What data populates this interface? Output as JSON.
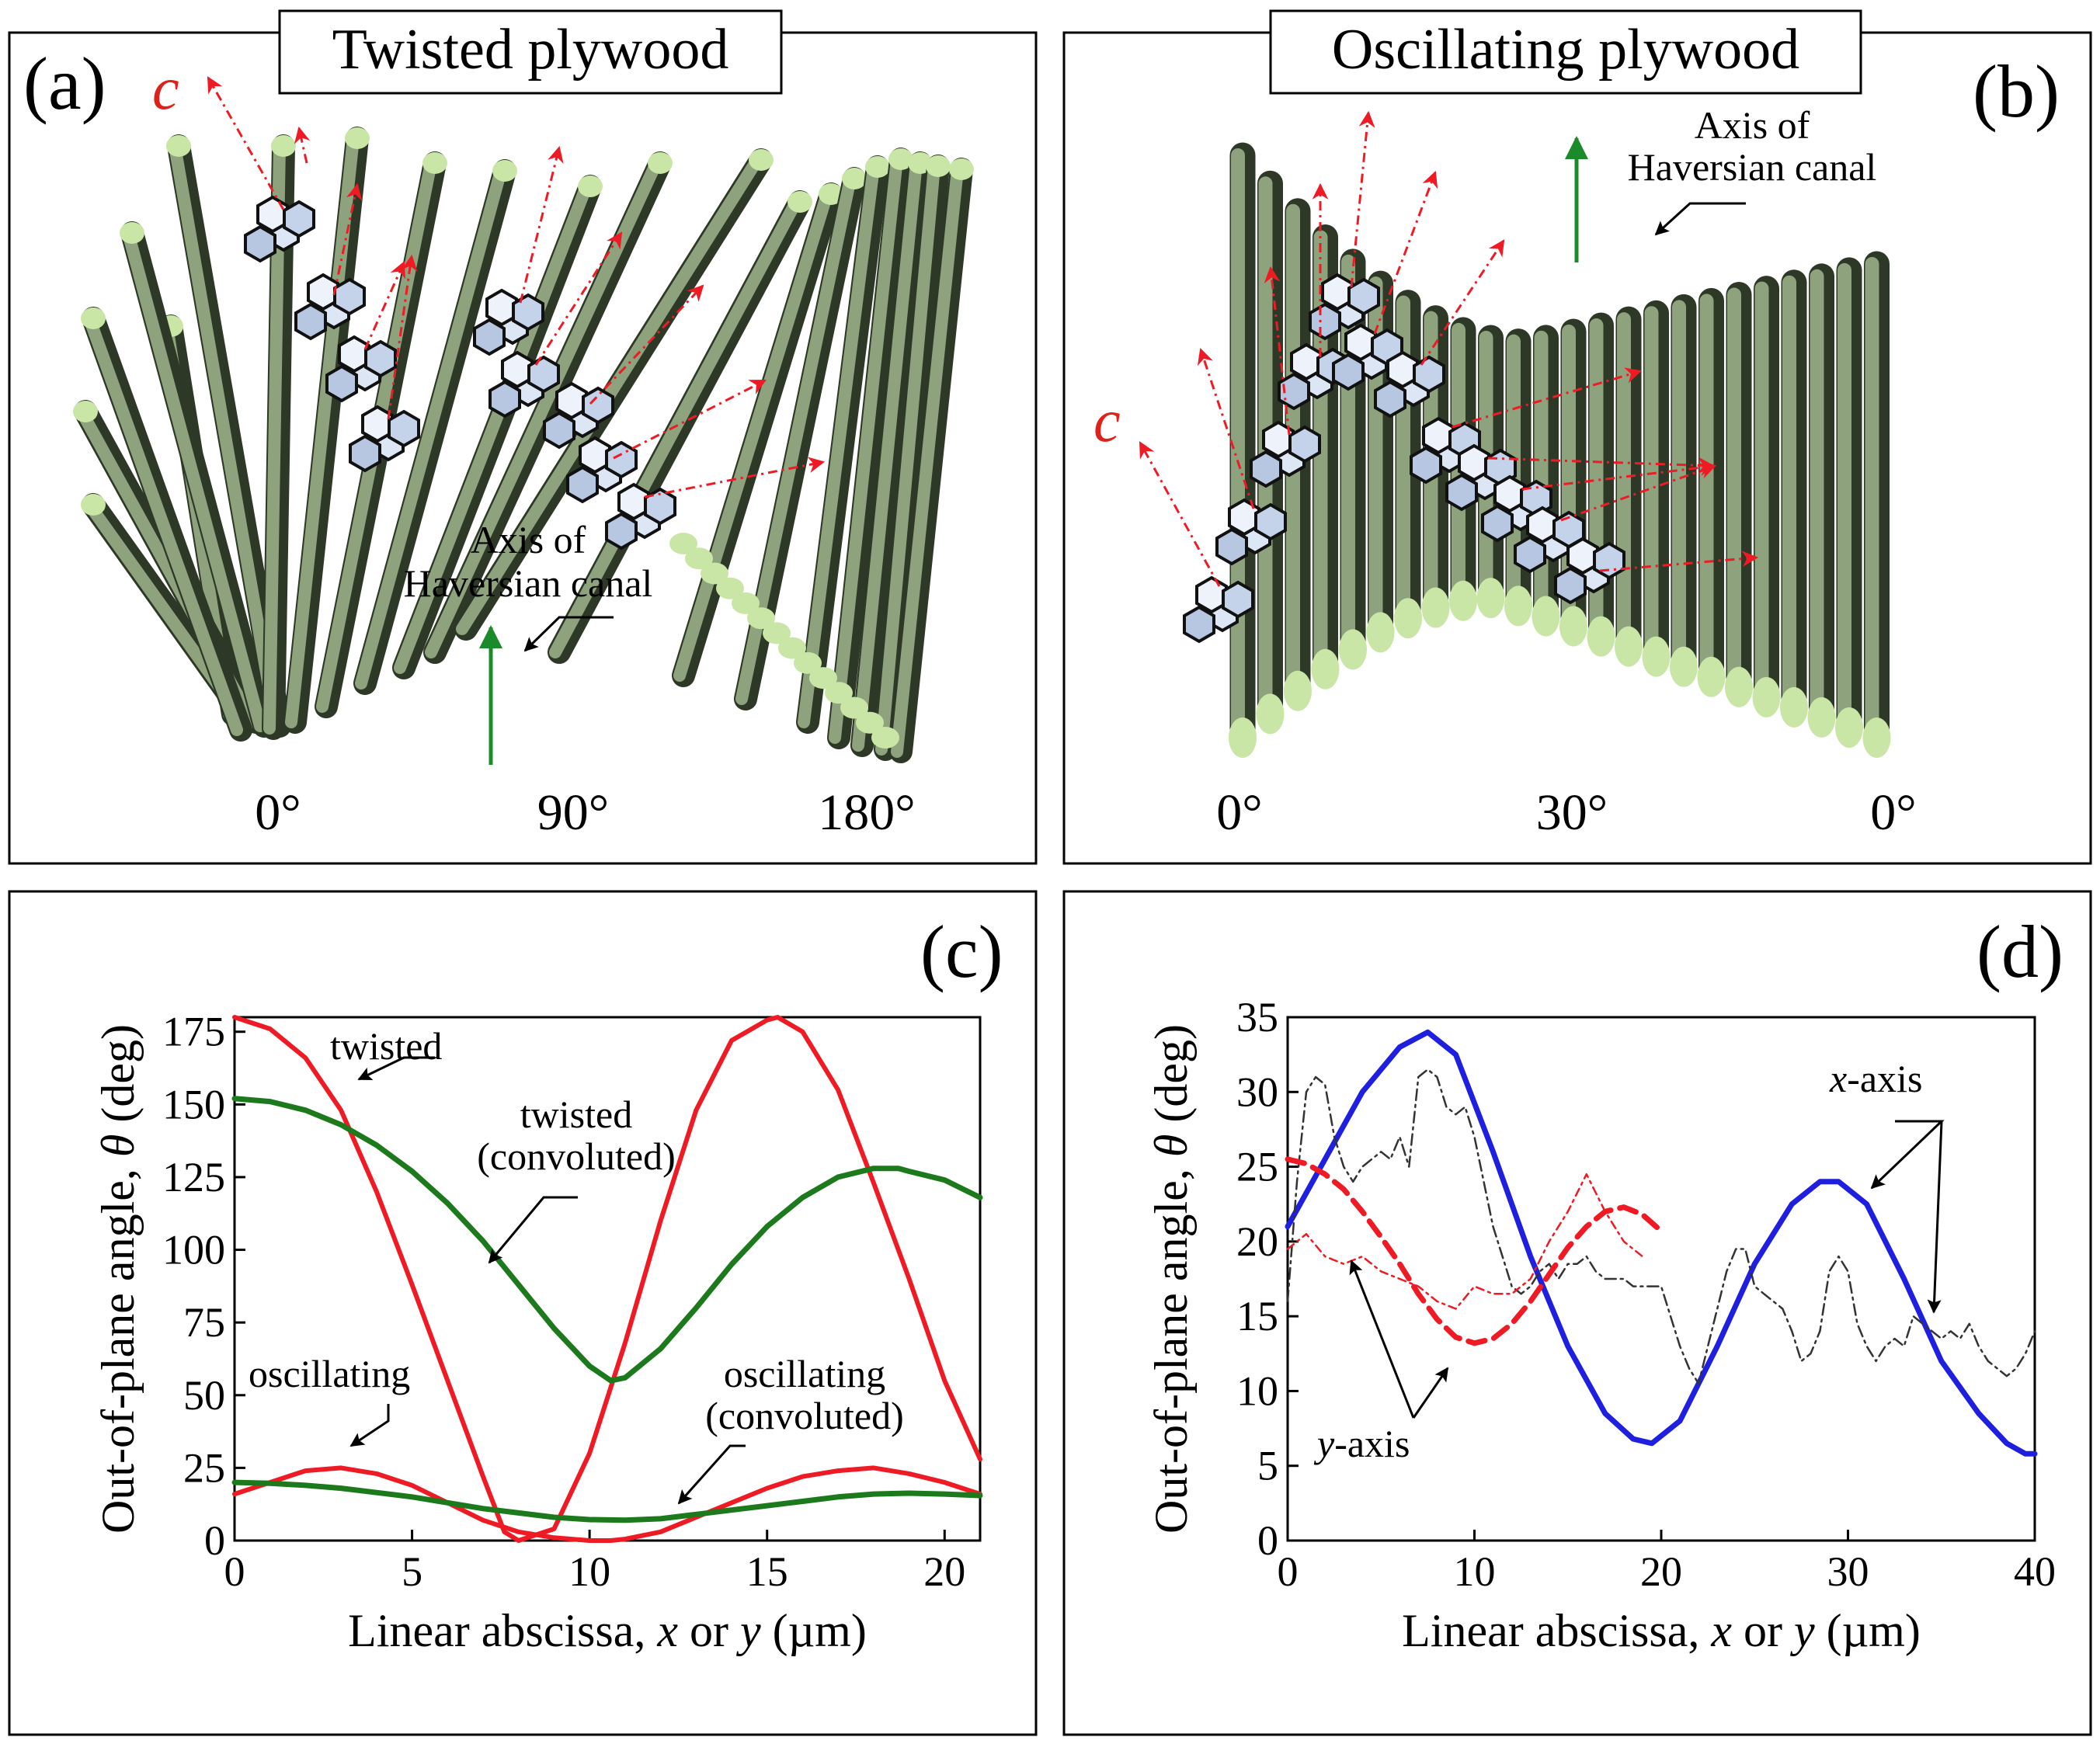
{
  "panel_a": {
    "label": "(a)",
    "title": "Twisted plywood",
    "c_label": "c",
    "axis_note_line1": "Axis of",
    "axis_note_line2": "Haversian canal",
    "angle_labels": [
      "0°",
      "90°",
      "180°"
    ]
  },
  "panel_b": {
    "label": "(b)",
    "title": "Oscillating plywood",
    "c_label": "c",
    "axis_note_line1": "Axis of",
    "axis_note_line2": "Haversian canal",
    "angle_labels": [
      "0°",
      "30°",
      "0°"
    ]
  },
  "colors": {
    "fiber": "#7f9470",
    "fiber_tip": "#c9e6a6",
    "arrow_red": "#ee1b24",
    "axis_green": "#1a8a2a",
    "blue": "#1f1fe0",
    "green_line": "#1c7a1c"
  },
  "chart_data": [
    {
      "panel": "(c)",
      "type": "line",
      "xlabel": "Linear abscissa, x or y (µm)",
      "ylabel": "Out-of-plane angle, θ (deg)",
      "xlim": [
        0,
        21
      ],
      "ylim": [
        0,
        180
      ],
      "xticks": [
        0,
        5,
        10,
        15,
        20
      ],
      "yticks": [
        0,
        25,
        50,
        75,
        100,
        125,
        150,
        175
      ],
      "series": [
        {
          "name": "twisted",
          "color": "#ee1b24",
          "x": [
            0,
            1,
            2,
            3,
            4,
            5,
            6,
            7,
            7.6,
            8,
            9,
            10,
            11,
            12,
            13,
            14,
            15,
            15.3,
            16,
            17,
            18,
            19,
            20,
            21
          ],
          "y": [
            180,
            176,
            166,
            148,
            120,
            88,
            55,
            22,
            3,
            0,
            4,
            30,
            68,
            110,
            148,
            172,
            179,
            180,
            175,
            155,
            123,
            90,
            55,
            28
          ]
        },
        {
          "name": "twisted (convoluted)",
          "color": "#1c7a1c",
          "x": [
            0,
            1,
            2,
            3,
            4,
            5,
            6,
            7,
            8,
            9,
            10,
            10.6,
            11,
            12,
            13,
            14,
            15,
            16,
            17,
            18,
            18.7,
            19,
            20,
            21
          ],
          "y": [
            152,
            151,
            148,
            143,
            136,
            127,
            116,
            103,
            88,
            73,
            60,
            55,
            56,
            66,
            80,
            95,
            108,
            118,
            125,
            128,
            128,
            127,
            124,
            118
          ]
        },
        {
          "name": "oscillating",
          "color": "#ee1b24",
          "x": [
            0,
            1,
            2,
            3,
            4,
            5,
            6,
            7,
            8,
            9,
            10,
            10.6,
            11,
            12,
            13,
            14,
            15,
            16,
            17,
            18,
            19,
            20,
            21
          ],
          "y": [
            16,
            20,
            24,
            25,
            23,
            19,
            13,
            7,
            3,
            1,
            0,
            0,
            0.5,
            3,
            8,
            13,
            18,
            22,
            24,
            25,
            23,
            20,
            16
          ]
        },
        {
          "name": "oscillating (convoluted)",
          "color": "#1c7a1c",
          "x": [
            0,
            1,
            2,
            3,
            4,
            5,
            6,
            7,
            8,
            9,
            10,
            11,
            12,
            13,
            14,
            15,
            16,
            17,
            18,
            19,
            20,
            21
          ],
          "y": [
            20,
            19.7,
            19,
            18,
            16.5,
            15,
            13,
            11,
            9.5,
            8,
            7.2,
            7,
            7.5,
            9,
            10.5,
            12,
            13.5,
            15,
            16,
            16.3,
            16,
            15.5
          ]
        }
      ],
      "annotations": [
        "twisted",
        "twisted",
        "(convoluted)",
        "oscillating",
        "oscillating",
        "(convoluted)"
      ]
    },
    {
      "panel": "(d)",
      "type": "line",
      "xlabel": "Linear abscissa, x or y (µm)",
      "ylabel": "Out-of-plane angle, θ (deg)",
      "xlim": [
        0,
        40
      ],
      "ylim": [
        0,
        35
      ],
      "xticks": [
        0,
        10,
        20,
        30,
        40
      ],
      "yticks": [
        0,
        5,
        10,
        15,
        20,
        25,
        30,
        35
      ],
      "series": [
        {
          "name": "x-axis fit",
          "color": "#1f1fe0",
          "x": [
            0,
            2,
            4,
            6,
            7.5,
            9,
            11,
            13,
            15,
            17,
            18.5,
            19.5,
            21,
            23,
            25,
            27,
            28.5,
            29.5,
            31,
            33,
            35,
            37,
            38.5,
            39.5,
            40
          ],
          "y": [
            21,
            25.5,
            30,
            33,
            34,
            32.5,
            26,
            19,
            13,
            8.5,
            6.8,
            6.5,
            8,
            13,
            18.5,
            22.5,
            24,
            24,
            22.5,
            17.5,
            12,
            8.5,
            6.5,
            5.8,
            5.8
          ]
        },
        {
          "name": "x-axis data",
          "color": "#333333",
          "x": [
            0,
            0.5,
            1,
            1.5,
            2,
            2.5,
            3,
            3.5,
            4,
            4.5,
            5,
            5.5,
            6,
            6.5,
            7,
            7.5,
            8,
            8.5,
            9,
            9.5,
            10,
            10.5,
            11,
            11.5,
            12,
            12.5,
            13,
            13.5,
            14,
            14.5,
            15,
            15.5,
            16,
            16.5,
            17,
            17.5,
            18,
            18.5,
            19,
            19.5,
            20,
            20.5,
            21,
            21.5,
            22,
            22.5,
            23,
            23.5,
            24,
            24.5,
            25,
            25.5,
            26,
            26.5,
            27,
            27.5,
            28,
            28.5,
            29,
            29.5,
            30,
            30.5,
            31,
            31.5,
            32,
            32.5,
            33,
            33.5,
            34,
            34.5,
            35,
            35.5,
            36,
            36.5,
            37,
            37.5,
            38,
            38.5,
            39,
            39.5,
            40
          ],
          "y": [
            16,
            24,
            30,
            31,
            30.5,
            27,
            25,
            24,
            25,
            25.5,
            26,
            25.5,
            27,
            25,
            31,
            31.5,
            31,
            29,
            28.5,
            29,
            27,
            24,
            21,
            19,
            17,
            16.5,
            17,
            18,
            18.5,
            17.5,
            18.5,
            18.5,
            19,
            18,
            17.5,
            17.5,
            17.5,
            17,
            17,
            17,
            17,
            15,
            13,
            11.5,
            10.5,
            13,
            15.5,
            18,
            19.5,
            19.5,
            17,
            16.5,
            16,
            15.5,
            14,
            12,
            12.5,
            14,
            18,
            19,
            18,
            14.5,
            13,
            12,
            13,
            13.5,
            13,
            15,
            14.5,
            14,
            13.5,
            14,
            13.5,
            14.5,
            13,
            12,
            11.5,
            11,
            11.5,
            12.5,
            14
          ]
        },
        {
          "name": "y-axis fit",
          "color": "#ee1b24",
          "x": [
            0,
            1,
            2,
            3,
            4,
            5,
            6,
            7,
            8,
            9,
            10,
            11,
            12,
            13,
            14,
            15,
            16,
            17,
            18,
            19,
            20
          ],
          "y": [
            25.5,
            25.2,
            24.5,
            23.5,
            22,
            20.3,
            18.5,
            16.5,
            14.8,
            13.6,
            13.2,
            13.5,
            14.5,
            16,
            17.8,
            19.6,
            21,
            22,
            22.3,
            21.8,
            20.7
          ]
        },
        {
          "name": "y-axis data",
          "color": "#ee1b24",
          "x": [
            0,
            1,
            2,
            3,
            4,
            5,
            6,
            7,
            8,
            9,
            10,
            11,
            12,
            13,
            14,
            15,
            16,
            17,
            18,
            19
          ],
          "y": [
            19.5,
            20.5,
            19,
            18.5,
            19,
            18,
            17.5,
            17,
            16,
            15.5,
            17,
            16.5,
            16.5,
            17.5,
            20,
            22,
            24.5,
            22,
            20,
            19
          ]
        }
      ],
      "annotations": [
        "x-axis",
        "y-axis"
      ]
    }
  ],
  "panel_c": {
    "label": "(c)",
    "ann_twisted": "twisted",
    "ann_twisted_conv1": "twisted",
    "ann_twisted_conv2": "(convoluted)",
    "ann_osc": "oscillating",
    "ann_osc_conv1": "oscillating",
    "ann_osc_conv2": "(convoluted)"
  },
  "panel_d": {
    "label": "(d)",
    "ann_x": "x",
    "ann_x_suffix": "-axis",
    "ann_y": "y",
    "ann_y_suffix": "-axis"
  },
  "axes_text": {
    "ylabel_prefix": "Out-of-plane angle, ",
    "ylabel_theta": "θ",
    "ylabel_suffix": " (deg)",
    "xlabel_prefix": "Linear abscissa, ",
    "xlabel_x": "x",
    "xlabel_or": " or ",
    "xlabel_y": "y",
    "xlabel_suffix": " (µm)"
  }
}
